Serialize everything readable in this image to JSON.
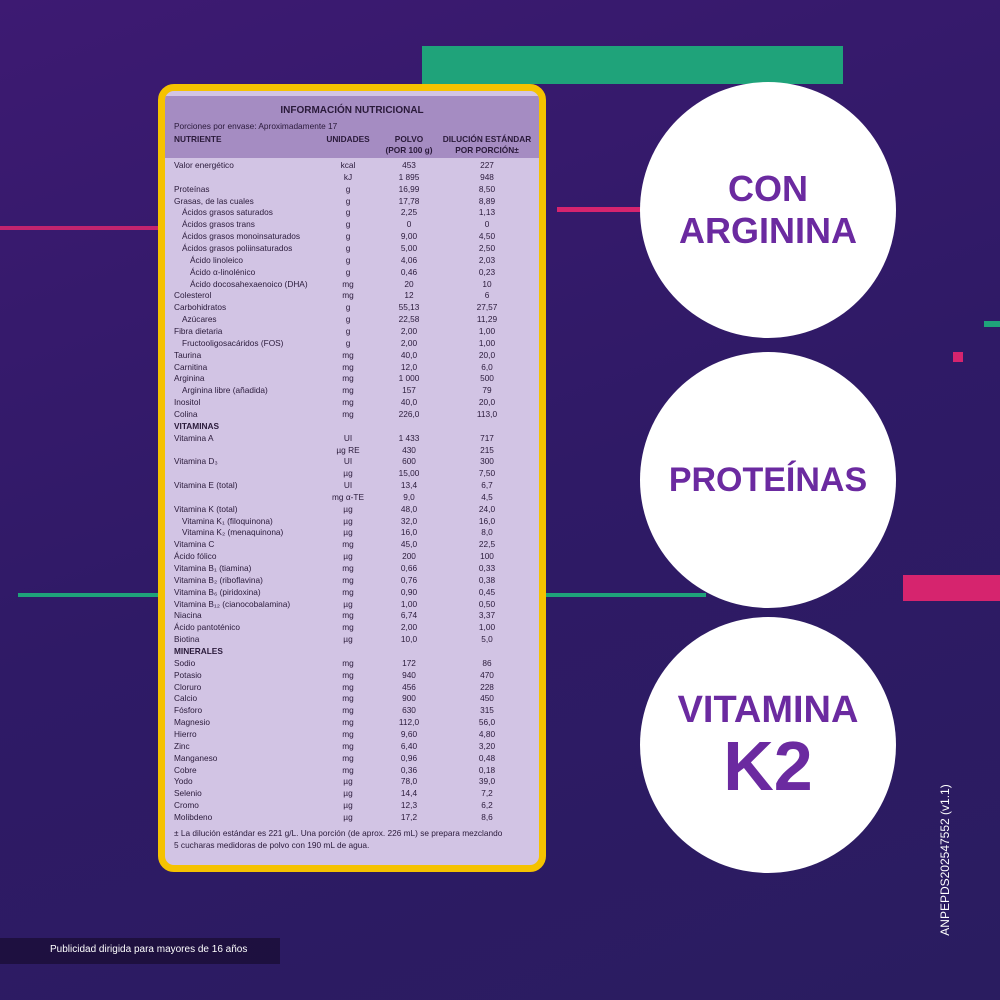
{
  "table": {
    "title": "INFORMACIÓN NUTRICIONAL",
    "servings": "Porciones por envase: Aproximadamente 17",
    "columns": {
      "nutrient": "NUTRIENTE",
      "unit": "UNIDADES",
      "powder": [
        "POLVO",
        "(POR 100 g)"
      ],
      "dilution": [
        "DILUCIÓN ESTÁNDAR",
        "POR PORCIÓN±"
      ]
    },
    "rows": [
      {
        "name": "Valor energético",
        "unit": "kcal",
        "powder": "453",
        "dilution": "227",
        "level": 0
      },
      {
        "unit": "kJ",
        "powder": "1 895",
        "dilution": "948",
        "level": 0
      },
      {
        "name": "Proteínas",
        "unit": "g",
        "powder": "16,99",
        "dilution": "8,50",
        "level": 0
      },
      {
        "name": "Grasas, de las cuales",
        "unit": "g",
        "powder": "17,78",
        "dilution": "8,89",
        "level": 0
      },
      {
        "name": "Ácidos grasos saturados",
        "unit": "g",
        "powder": "2,25",
        "dilution": "1,13",
        "level": 1
      },
      {
        "name": "Ácidos grasos trans",
        "unit": "g",
        "powder": "0",
        "dilution": "0",
        "level": 1
      },
      {
        "name": "Ácidos grasos monoinsaturados",
        "unit": "g",
        "powder": "9,00",
        "dilution": "4,50",
        "level": 1
      },
      {
        "name": "Ácidos grasos poliinsaturados",
        "unit": "g",
        "powder": "5,00",
        "dilution": "2,50",
        "level": 1
      },
      {
        "name": "Ácido linoleico",
        "unit": "g",
        "powder": "4,06",
        "dilution": "2,03",
        "level": 2
      },
      {
        "name": "Ácido α-linolénico",
        "unit": "g",
        "powder": "0,46",
        "dilution": "0,23",
        "level": 2
      },
      {
        "name": "Ácido docosahexaenoico (DHA)",
        "unit": "mg",
        "powder": "20",
        "dilution": "10",
        "level": 2
      },
      {
        "name": "Colesterol",
        "unit": "mg",
        "powder": "12",
        "dilution": "6",
        "level": 0
      },
      {
        "name": "Carbohidratos",
        "unit": "g",
        "powder": "55,13",
        "dilution": "27,57",
        "level": 0
      },
      {
        "name": "Azúcares",
        "unit": "g",
        "powder": "22,58",
        "dilution": "11,29",
        "level": 1
      },
      {
        "name": "Fibra dietaria",
        "unit": "g",
        "powder": "2,00",
        "dilution": "1,00",
        "level": 0
      },
      {
        "name": "Fructooligosacáridos (FOS)",
        "unit": "g",
        "powder": "2,00",
        "dilution": "1,00",
        "level": 1
      },
      {
        "name": "Taurina",
        "unit": "mg",
        "powder": "40,0",
        "dilution": "20,0",
        "level": 0
      },
      {
        "name": "Carnitina",
        "unit": "mg",
        "powder": "12,0",
        "dilution": "6,0",
        "level": 0
      },
      {
        "name": "Arginina",
        "unit": "mg",
        "powder": "1 000",
        "dilution": "500",
        "level": 0
      },
      {
        "name": "Arginina libre (añadida)",
        "unit": "mg",
        "powder": "157",
        "dilution": "79",
        "level": 1
      },
      {
        "name": "Inositol",
        "unit": "mg",
        "powder": "40,0",
        "dilution": "20,0",
        "level": 0
      },
      {
        "name": "Colina",
        "unit": "mg",
        "powder": "226,0",
        "dilution": "113,0",
        "level": 0
      },
      {
        "section": "VITAMINAS"
      },
      {
        "name": "Vitamina A",
        "unit": "UI",
        "powder": "1 433",
        "dilution": "717",
        "level": 0
      },
      {
        "unit": "µg RE",
        "powder": "430",
        "dilution": "215",
        "level": 0
      },
      {
        "name": "Vitamina D₃",
        "unit": "UI",
        "powder": "600",
        "dilution": "300",
        "level": 0
      },
      {
        "unit": "µg",
        "powder": "15,00",
        "dilution": "7,50",
        "level": 0
      },
      {
        "name": "Vitamina E (total)",
        "unit": "UI",
        "powder": "13,4",
        "dilution": "6,7",
        "level": 0
      },
      {
        "unit": "mg α-TE",
        "powder": "9,0",
        "dilution": "4,5",
        "level": 0
      },
      {
        "name": "Vitamina K (total)",
        "unit": "µg",
        "powder": "48,0",
        "dilution": "24,0",
        "level": 0
      },
      {
        "name": "Vitamina K₁ (filoquinona)",
        "unit": "µg",
        "powder": "32,0",
        "dilution": "16,0",
        "level": 1
      },
      {
        "name": "Vitamina K₂ (menaquinona)",
        "unit": "µg",
        "powder": "16,0",
        "dilution": "8,0",
        "level": 1
      },
      {
        "name": "Vitamina C",
        "unit": "mg",
        "powder": "45,0",
        "dilution": "22,5",
        "level": 0
      },
      {
        "name": "Ácido fólico",
        "unit": "µg",
        "powder": "200",
        "dilution": "100",
        "level": 0
      },
      {
        "name": "Vitamina B₁ (tiamina)",
        "unit": "mg",
        "powder": "0,66",
        "dilution": "0,33",
        "level": 0
      },
      {
        "name": "Vitamina B₂ (riboflavina)",
        "unit": "mg",
        "powder": "0,76",
        "dilution": "0,38",
        "level": 0
      },
      {
        "name": "Vitamina B₆ (piridoxina)",
        "unit": "mg",
        "powder": "0,90",
        "dilution": "0,45",
        "level": 0
      },
      {
        "name": "Vitamina B₁₂ (cianocobalamina)",
        "unit": "µg",
        "powder": "1,00",
        "dilution": "0,50",
        "level": 0
      },
      {
        "name": "Niacina",
        "unit": "mg",
        "powder": "6,74",
        "dilution": "3,37",
        "level": 0
      },
      {
        "name": "Ácido pantoténico",
        "unit": "mg",
        "powder": "2,00",
        "dilution": "1,00",
        "level": 0
      },
      {
        "name": "Biotina",
        "unit": "µg",
        "powder": "10,0",
        "dilution": "5,0",
        "level": 0
      },
      {
        "section": "MINERALES"
      },
      {
        "name": "Sodio",
        "unit": "mg",
        "powder": "172",
        "dilution": "86",
        "level": 0
      },
      {
        "name": "Potasio",
        "unit": "mg",
        "powder": "940",
        "dilution": "470",
        "level": 0
      },
      {
        "name": "Cloruro",
        "unit": "mg",
        "powder": "456",
        "dilution": "228",
        "level": 0
      },
      {
        "name": "Calcio",
        "unit": "mg",
        "powder": "900",
        "dilution": "450",
        "level": 0
      },
      {
        "name": "Fósforo",
        "unit": "mg",
        "powder": "630",
        "dilution": "315",
        "level": 0
      },
      {
        "name": "Magnesio",
        "unit": "mg",
        "powder": "112,0",
        "dilution": "56,0",
        "level": 0
      },
      {
        "name": "Hierro",
        "unit": "mg",
        "powder": "9,60",
        "dilution": "4,80",
        "level": 0
      },
      {
        "name": "Zinc",
        "unit": "mg",
        "powder": "6,40",
        "dilution": "3,20",
        "level": 0
      },
      {
        "name": "Manganeso",
        "unit": "mg",
        "powder": "0,96",
        "dilution": "0,48",
        "level": 0
      },
      {
        "name": "Cobre",
        "unit": "mg",
        "powder": "0,36",
        "dilution": "0,18",
        "level": 0
      },
      {
        "name": "Yodo",
        "unit": "µg",
        "powder": "78,0",
        "dilution": "39,0",
        "level": 0
      },
      {
        "name": "Selenio",
        "unit": "µg",
        "powder": "14,4",
        "dilution": "7,2",
        "level": 0
      },
      {
        "name": "Cromo",
        "unit": "µg",
        "powder": "12,3",
        "dilution": "6,2",
        "level": 0
      },
      {
        "name": "Molibdeno",
        "unit": "µg",
        "powder": "17,2",
        "dilution": "8,6",
        "level": 0
      }
    ],
    "footnote": [
      "± La dilución estándar es 221 g/L. Una porción (de aprox. 226 mL) se prepara mezclando",
      "5 cucharas medidoras de polvo con 190 mL de agua."
    ]
  },
  "badges": [
    [
      "CON",
      "ARGININA"
    ],
    [
      "PROTEÍNAS"
    ],
    [
      "VITAMINA",
      "K2"
    ]
  ],
  "disclaimer": "Publicidad dirigida para mayores de 16 años",
  "code": "ANPEPDS202547552 (v1.1)"
}
